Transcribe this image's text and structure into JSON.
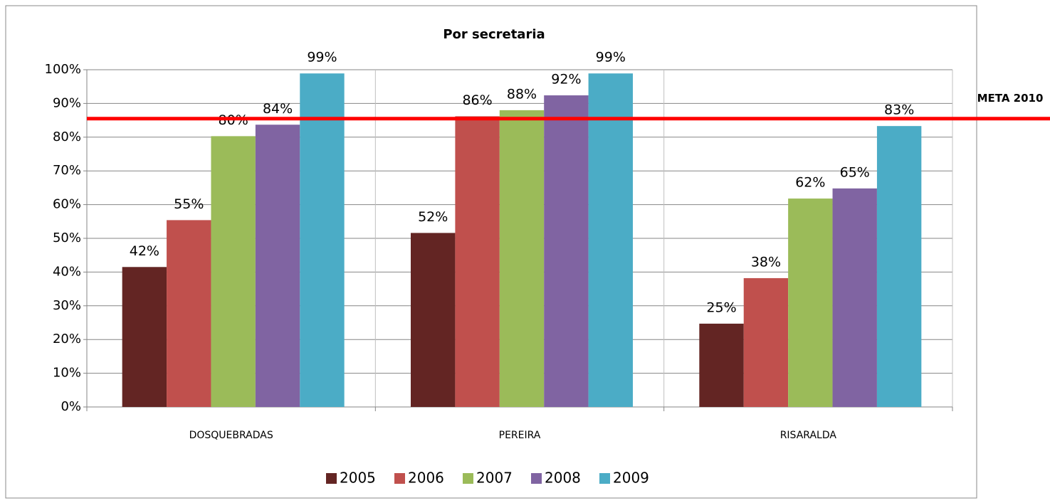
{
  "chart_data": {
    "type": "bar",
    "title": "Por secretaria",
    "categories": [
      "DOSQUEBRADAS",
      "PEREIRA",
      "RISARALDA"
    ],
    "series": [
      {
        "name": "2005",
        "color": "#632523",
        "values": [
          41.5,
          51.6,
          24.7
        ],
        "value_labels": [
          "42%",
          "52%",
          "25%"
        ]
      },
      {
        "name": "2006",
        "color": "#c0504d",
        "values": [
          55.4,
          86.2,
          38.2
        ],
        "value_labels": [
          "55%",
          "86%",
          "38%"
        ]
      },
      {
        "name": "2007",
        "color": "#9bbb59",
        "values": [
          80.3,
          88.0,
          61.8
        ],
        "value_labels": [
          "80%",
          "88%",
          "62%"
        ]
      },
      {
        "name": "2008",
        "color": "#8064a2",
        "values": [
          83.7,
          92.4,
          64.8
        ],
        "value_labels": [
          "84%",
          "92%",
          "65%"
        ]
      },
      {
        "name": "2009",
        "color": "#4bacc6",
        "values": [
          98.9,
          98.9,
          83.3
        ],
        "value_labels": [
          "99%",
          "99%",
          "83%"
        ]
      }
    ],
    "ylim": [
      0,
      100
    ],
    "yticks": [
      {
        "value": 0,
        "label": "0%"
      },
      {
        "value": 10,
        "label": "10%"
      },
      {
        "value": 20,
        "label": "20%"
      },
      {
        "value": 30,
        "label": "30%"
      },
      {
        "value": 40,
        "label": "40%"
      },
      {
        "value": 50,
        "label": "50%"
      },
      {
        "value": 60,
        "label": "60%"
      },
      {
        "value": 70,
        "label": "70%"
      },
      {
        "value": 80,
        "label": "80%"
      },
      {
        "value": 90,
        "label": "90%"
      },
      {
        "value": 100,
        "label": "100%"
      }
    ],
    "grid": true,
    "legend": "bottom",
    "reference_line": {
      "label": "META 2010",
      "value": 85.5,
      "color": "#ff0000"
    }
  }
}
